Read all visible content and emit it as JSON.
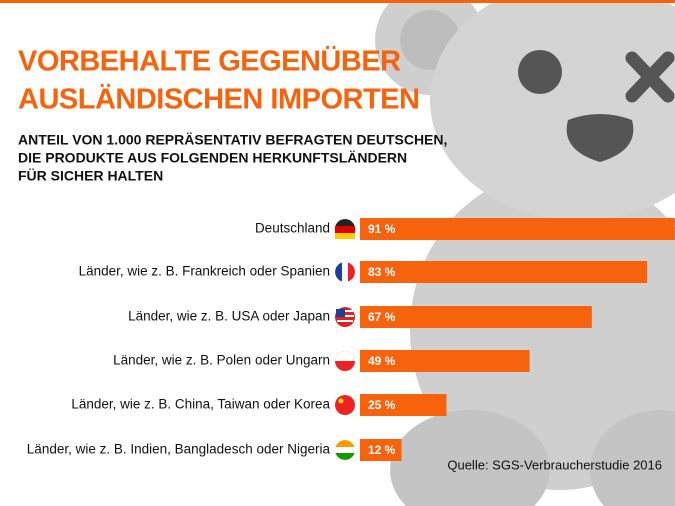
{
  "chart_data": {
    "type": "bar",
    "orientation": "horizontal",
    "title": [
      "VORBEHALTE GEGENÜBER",
      "AUSLÄNDISCHEN IMPORTEN"
    ],
    "subtitle": [
      "ANTEIL VON 1.000 REPRÄSENTATIV BEFRAGTEN DEUTSCHEN,",
      "DIE PRODUKTE AUS FOLGENDEN HERKUNFTSLÄNDERN",
      "FÜR SICHER HALTEN"
    ],
    "categories": [
      "Deutschland",
      "Länder, wie z. B. Frankreich oder Spanien",
      "Länder, wie z. B. USA oder Japan",
      "Länder, wie z. B. Polen oder Ungarn",
      "Länder, wie z. B. China, Taiwan oder Korea",
      "Länder, wie z. B. Indien, Bangladesch oder Nigeria"
    ],
    "values": [
      91,
      83,
      67,
      49,
      25,
      12
    ],
    "value_labels": [
      "91 %",
      "83 %",
      "67 %",
      "49 %",
      "25 %",
      "12 %"
    ],
    "color": "#f7630c",
    "source": "Quelle: SGS-Verbraucherstudie 2016"
  }
}
